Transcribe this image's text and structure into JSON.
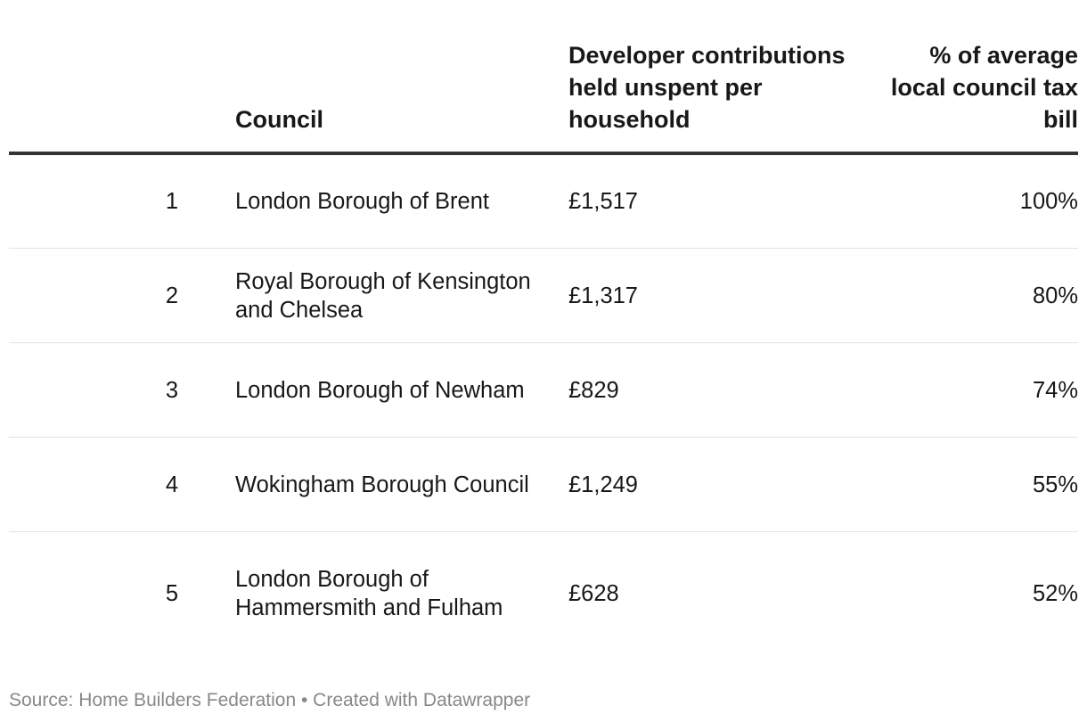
{
  "chart_data": {
    "type": "table",
    "columns": [
      "",
      "Council",
      "Developer contributions held unspent per household",
      "% of average local council tax bill"
    ],
    "rows": [
      {
        "rank": "1",
        "council": "London Borough of Brent",
        "amount": "£1,517",
        "pct": "100%"
      },
      {
        "rank": "2",
        "council": "Royal Borough of Kensington and Chelsea",
        "amount": "£1,317",
        "pct": "80%"
      },
      {
        "rank": "3",
        "council": "London Borough of Newham",
        "amount": "£829",
        "pct": "74%"
      },
      {
        "rank": "4",
        "council": "Wokingham Borough Council",
        "amount": "£1,249",
        "pct": "55%"
      },
      {
        "rank": "5",
        "council": "London Borough of Hammersmith and Fulham",
        "amount": "£628",
        "pct": "52%"
      }
    ]
  },
  "footer": {
    "text": "Source: Home Builders Federation • Created with Datawrapper"
  },
  "colors": {
    "text": "#181818",
    "header_rule": "#333333",
    "row_rule": "#e3e3e3",
    "footer_text": "#888888"
  }
}
